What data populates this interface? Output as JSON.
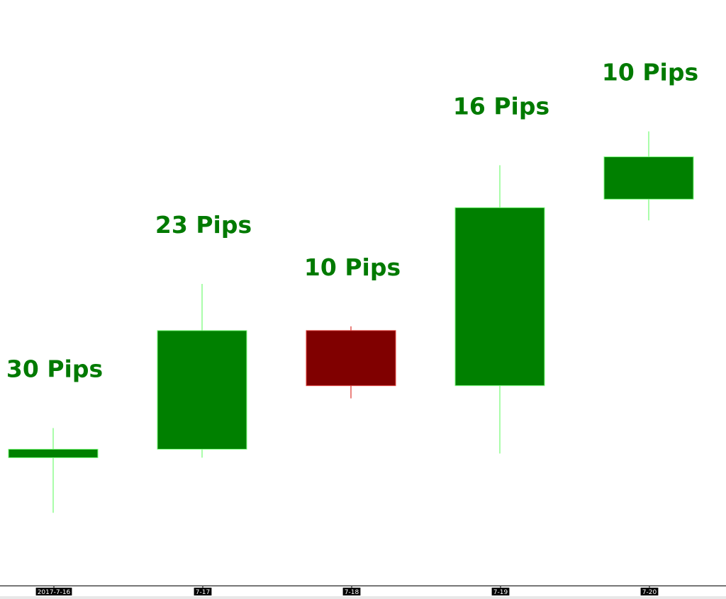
{
  "chart_data": {
    "type": "candlestick",
    "title": "",
    "xlabel": "",
    "ylabel": "",
    "categories": [
      "2017-7-16",
      "7-17",
      "7-18",
      "7-19",
      "7-20"
    ],
    "candles": [
      {
        "date": "2017-7-16",
        "open": 6,
        "close": 7,
        "high": 9.5,
        "low": -0.5,
        "direction": "up",
        "label": "30 Pips"
      },
      {
        "date": "7-17",
        "open": 7,
        "close": 21,
        "high": 26.5,
        "low": 6,
        "direction": "up",
        "label": "23 Pips"
      },
      {
        "date": "7-18",
        "open": 21,
        "close": 14.5,
        "high": 21.5,
        "low": 13,
        "direction": "down",
        "label": "10 Pips"
      },
      {
        "date": "7-19",
        "open": 14.5,
        "close": 35.5,
        "high": 40.5,
        "low": 6.5,
        "direction": "up",
        "label": "16 Pips"
      },
      {
        "date": "7-20",
        "open": 36.5,
        "close": 41.5,
        "high": 44.5,
        "low": 34,
        "direction": "up",
        "label": "10 Pips"
      }
    ],
    "ylim": [
      -9,
      60
    ],
    "grid": false,
    "legend": "none",
    "colors": {
      "up_body": "#008000",
      "up_wick": "#7CFC7C",
      "down_body": "#800000",
      "down_wick": "#E0403A",
      "label": "#007A00",
      "axis": "#000000",
      "tick_bg": "#000000",
      "tick_text": "#ffffff"
    }
  }
}
